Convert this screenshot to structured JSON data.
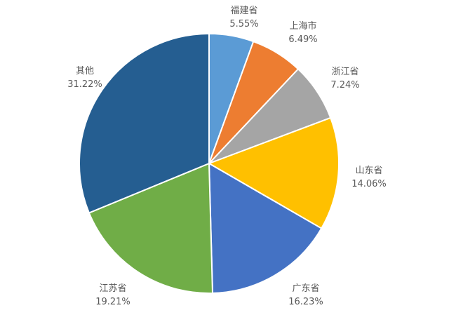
{
  "chart_data": {
    "type": "pie",
    "start_angle_deg": 0,
    "direction": "clockwise",
    "legend": "none",
    "slices": [
      {
        "label": "福建省",
        "value": 5.55,
        "value_label": "5.55%",
        "color": "#5B9BD5"
      },
      {
        "label": "上海市",
        "value": 6.49,
        "value_label": "6.49%",
        "color": "#ED7D31"
      },
      {
        "label": "浙江省",
        "value": 7.24,
        "value_label": "7.24%",
        "color": "#A5A5A5"
      },
      {
        "label": "山东省",
        "value": 14.06,
        "value_label": "14.06%",
        "color": "#FFC000"
      },
      {
        "label": "广东省",
        "value": 16.23,
        "value_label": "16.23%",
        "color": "#4472C4"
      },
      {
        "label": "江苏省",
        "value": 19.21,
        "value_label": "19.21%",
        "color": "#70AD47"
      },
      {
        "label": "其他",
        "value": 31.22,
        "value_label": "31.22%",
        "color": "#255E91"
      }
    ]
  }
}
